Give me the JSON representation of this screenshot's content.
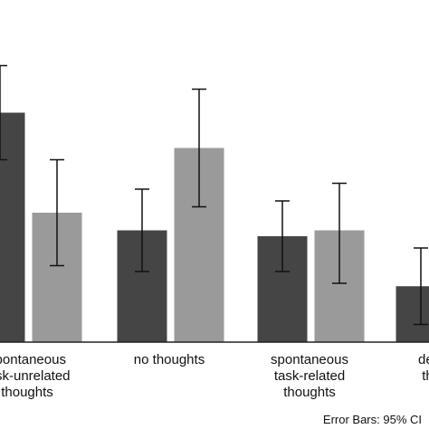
{
  "chart_data": {
    "type": "bar",
    "categories": [
      [
        "spontaneous",
        "task-unrelated",
        "thoughts"
      ],
      [
        "no thoughts"
      ],
      [
        "spontaneous",
        "task-related",
        "thoughts"
      ],
      [
        "deliberate",
        "thoughts"
      ]
    ],
    "series": [
      {
        "color": "#454545",
        "values": [
          39,
          19,
          18,
          9.5
        ],
        "ci_low": [
          31,
          12,
          12,
          3
        ],
        "ci_high": [
          47,
          26,
          24,
          16
        ]
      },
      {
        "color": "#9a9a9a",
        "values": [
          22,
          33,
          19,
          0
        ],
        "ci_low": [
          13,
          23,
          10,
          0
        ],
        "ci_high": [
          31,
          43,
          27,
          0
        ]
      }
    ],
    "ylim": [
      0,
      50
    ],
    "grid": false,
    "legend": "none",
    "footnote": "Error Bars: 95% CI"
  }
}
